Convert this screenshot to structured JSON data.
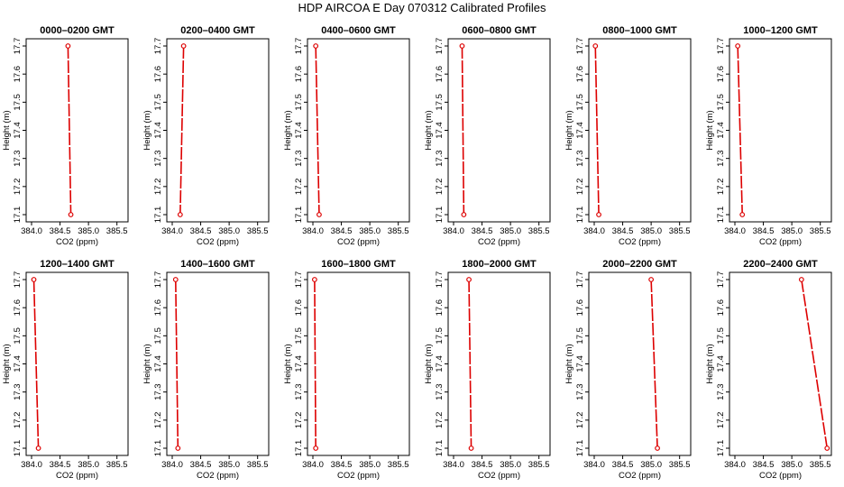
{
  "title": "HDP  AIRCOA E  Day 070312  Calibrated Profiles",
  "chart_data": {
    "type": "line",
    "xlabel": "CO2 (ppm)",
    "ylabel": "Height (m)",
    "xlim": [
      384.0,
      385.6
    ],
    "ylim": [
      17.1,
      17.7
    ],
    "xticks": [
      "384.0",
      "384.5",
      "385.0",
      "385.5"
    ],
    "yticks": [
      "17.1",
      "17.2",
      "17.3",
      "17.4",
      "17.5",
      "17.6",
      "17.7"
    ],
    "series_color": "#dd0000",
    "panels": [
      {
        "title": "0000–0200 GMT",
        "x": [
          384.64,
          384.69
        ],
        "y": [
          17.7,
          17.1
        ]
      },
      {
        "title": "0200–0400 GMT",
        "x": [
          384.2,
          384.14
        ],
        "y": [
          17.7,
          17.1
        ]
      },
      {
        "title": "0400–0600 GMT",
        "x": [
          384.05,
          384.11
        ],
        "y": [
          17.7,
          17.1
        ]
      },
      {
        "title": "0600–0800 GMT",
        "x": [
          384.15,
          384.18
        ],
        "y": [
          17.7,
          17.1
        ]
      },
      {
        "title": "0800–1000 GMT",
        "x": [
          384.02,
          384.08
        ],
        "y": [
          17.7,
          17.1
        ]
      },
      {
        "title": "1000–1200 GMT",
        "x": [
          384.05,
          384.13
        ],
        "y": [
          17.7,
          17.1
        ]
      },
      {
        "title": "1200–1400 GMT",
        "x": [
          384.04,
          384.12
        ],
        "y": [
          17.7,
          17.1
        ]
      },
      {
        "title": "1400–1600 GMT",
        "x": [
          384.06,
          384.1
        ],
        "y": [
          17.7,
          17.1
        ]
      },
      {
        "title": "1600–1800 GMT",
        "x": [
          384.03,
          384.05
        ],
        "y": [
          17.7,
          17.1
        ]
      },
      {
        "title": "1800–2000 GMT",
        "x": [
          384.27,
          384.31
        ],
        "y": [
          17.7,
          17.1
        ]
      },
      {
        "title": "2000–2200 GMT",
        "x": [
          385.0,
          385.11
        ],
        "y": [
          17.7,
          17.1
        ]
      },
      {
        "title": "2200–2400 GMT",
        "x": [
          385.17,
          385.62
        ],
        "y": [
          17.7,
          17.1
        ]
      }
    ]
  }
}
